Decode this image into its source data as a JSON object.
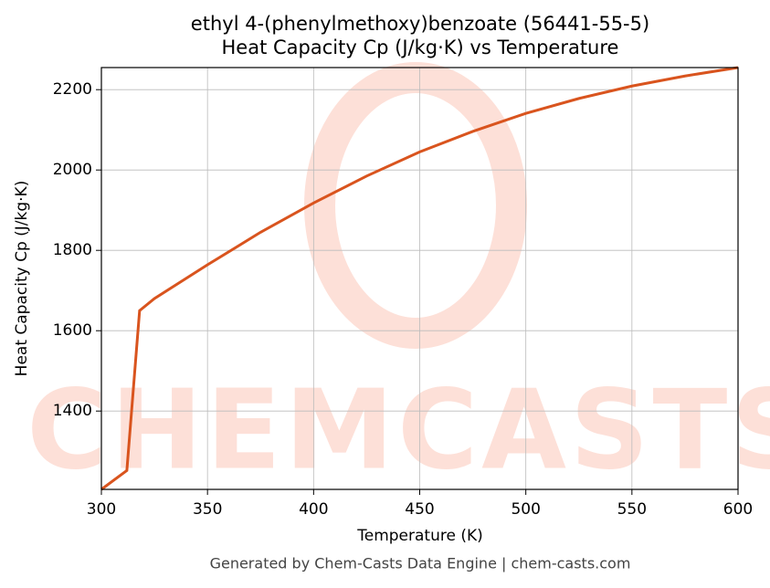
{
  "chart_data": {
    "type": "line",
    "title": "ethyl 4-(phenylmethoxy)benzoate (56441-55-5)",
    "subtitle": "Heat Capacity Cp (J/kg·K) vs Temperature",
    "x_label": "Temperature (K)",
    "y_label": "Heat Capacity Cp (J/kg·K)",
    "footer": "Generated by Chem-Casts Data Engine | chem-casts.com",
    "watermark": "CHEMCASTS",
    "x": [
      300,
      312,
      318,
      325,
      350,
      375,
      400,
      425,
      450,
      475,
      500,
      525,
      550,
      575,
      600
    ],
    "series": [
      {
        "name": "Cp",
        "color": "#d9541e",
        "values": [
          1205,
          1252,
          1650,
          1680,
          1764,
          1845,
          1918,
          1985,
          2045,
          2096,
          2141,
          2178,
          2209,
          2234,
          2255
        ]
      }
    ],
    "xlim": [
      300,
      600
    ],
    "xticks": [
      300,
      350,
      400,
      450,
      500,
      550,
      600
    ],
    "ylim": [
      1205,
      2255
    ],
    "yticks": [
      1400,
      1600,
      1800,
      2000,
      2200
    ],
    "grid": true
  }
}
